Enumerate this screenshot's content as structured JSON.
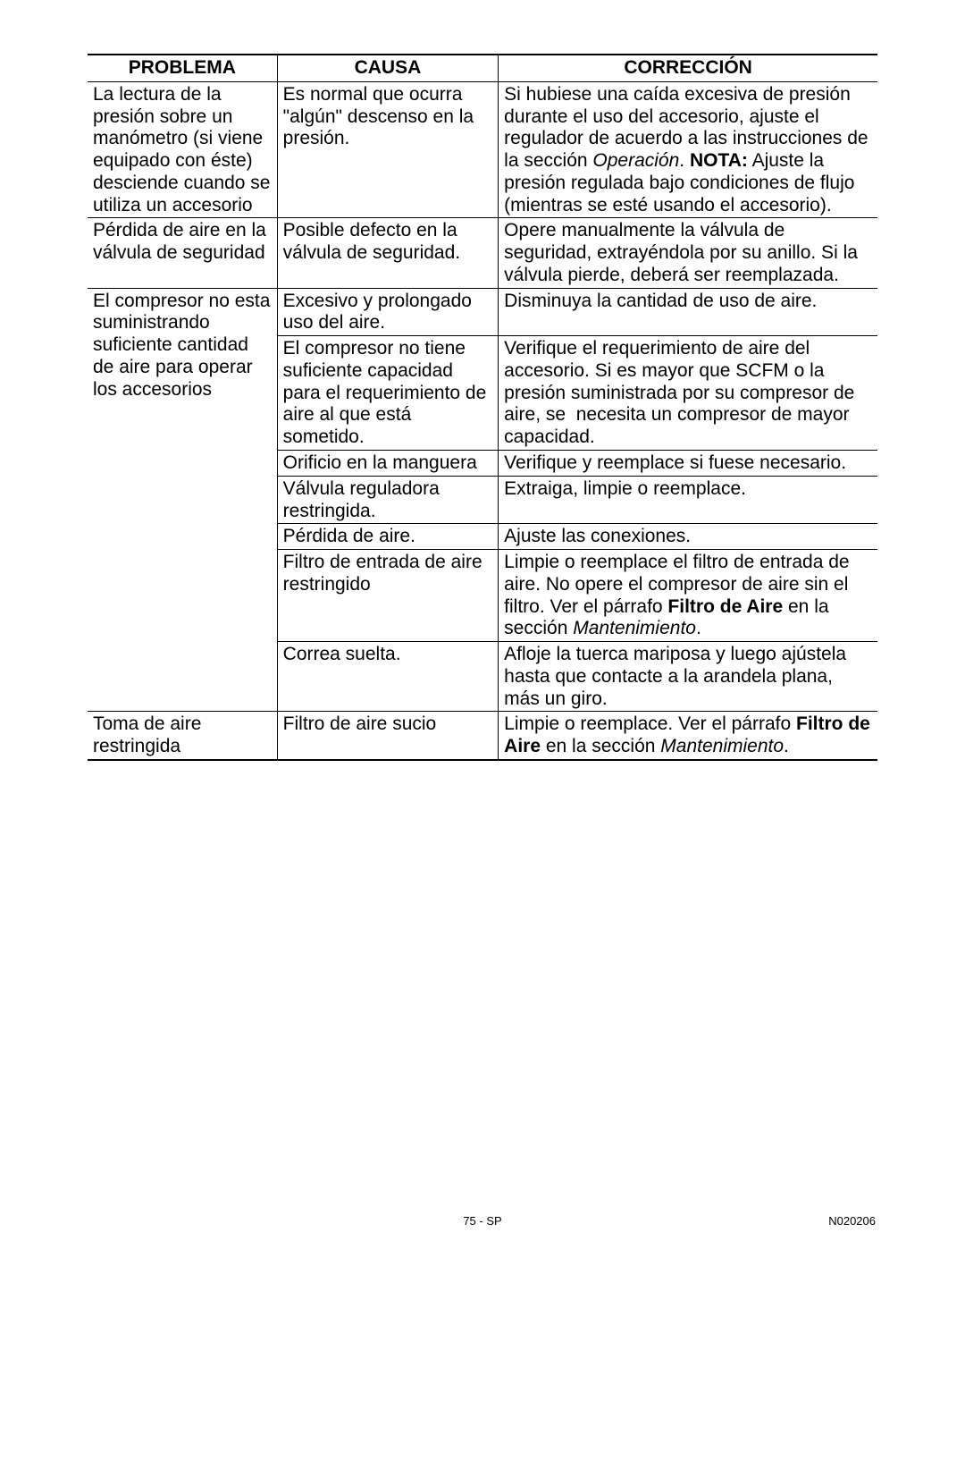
{
  "headers": {
    "problema": "PROBLEMA",
    "causa": "CAUSA",
    "correccion": "CORRECCIÓN"
  },
  "r1": {
    "prob": "La lectura de la presión sobre un manómetro (si viene equipado con éste) desciende cuando se utiliza un accesorio",
    "causa": "Es normal que ocurra \"algún\" descenso en la presión.",
    "corr_a": "Si hubiese una caída excesiva de presión durante el uso del accesorio, ajuste el regulador de acuerdo a las instrucciones de la sección ",
    "corr_op": "Operación",
    "corr_b": ". ",
    "corr_nota": "NOTA:",
    "corr_c": " Ajuste la presión regulada bajo condiciones de flujo (mientras se esté usando el accesorio)."
  },
  "r2": {
    "prob": "Pérdida de aire en la válvula de seguridad",
    "causa": "Posible defecto en la válvula de seguridad.",
    "corr": "Opere manualmente la válvula de seguridad, extrayéndola por su anillo. Si la válvula pierde, deberá ser reemplazada."
  },
  "r3": {
    "prob": "El compresor no esta suministrando suficiente cantidad de aire para operar los accesorios",
    "c1": "Excesivo y prolongado uso del aire.",
    "o1": "Disminuya la cantidad de uso de aire.",
    "c2": "El compresor no tiene suficiente capacidad para el requerimiento de aire al que está sometido.",
    "o2": "Verifique el requerimiento de aire del accesorio. Si es mayor que SCFM o la presión suministrada por su compresor de aire, se  necesita un compresor de mayor capacidad.",
    "c3": "Orificio en la manguera",
    "o3": "Verifique y reemplace si fuese necesario.",
    "c4": "Válvula reguladora restringida.",
    "o4": "Extraiga, limpie o reemplace.",
    "c5": "Pérdida de aire.",
    "o5": "Ajuste las conexiones.",
    "c6": "Filtro de entrada de aire restringido",
    "o6_a": "Limpie o reemplace el filtro de entrada de aire. No opere el compresor de aire sin el filtro. Ver el párrafo ",
    "o6_b": "Filtro de Aire",
    "o6_c": " en la sección ",
    "o6_d": "Mantenimiento",
    "o6_e": ".",
    "c7": "Correa suelta.",
    "o7": "Afloje la tuerca mariposa y luego ajústela hasta que contacte a la arandela plana, más un giro."
  },
  "r4": {
    "prob": "Toma de aire restringida",
    "causa": "Filtro de aire sucio",
    "corr_a": "Limpie o reemplace. Ver el párrafo ",
    "corr_b": "Filtro de Aire",
    "corr_c": " en la sección ",
    "corr_d": "Mantenimiento",
    "corr_e": "."
  },
  "footer": {
    "center": "75 - SP",
    "right": "N020206"
  },
  "col_widths": {
    "c1": "24%",
    "c2": "28%",
    "c3": "48%"
  }
}
